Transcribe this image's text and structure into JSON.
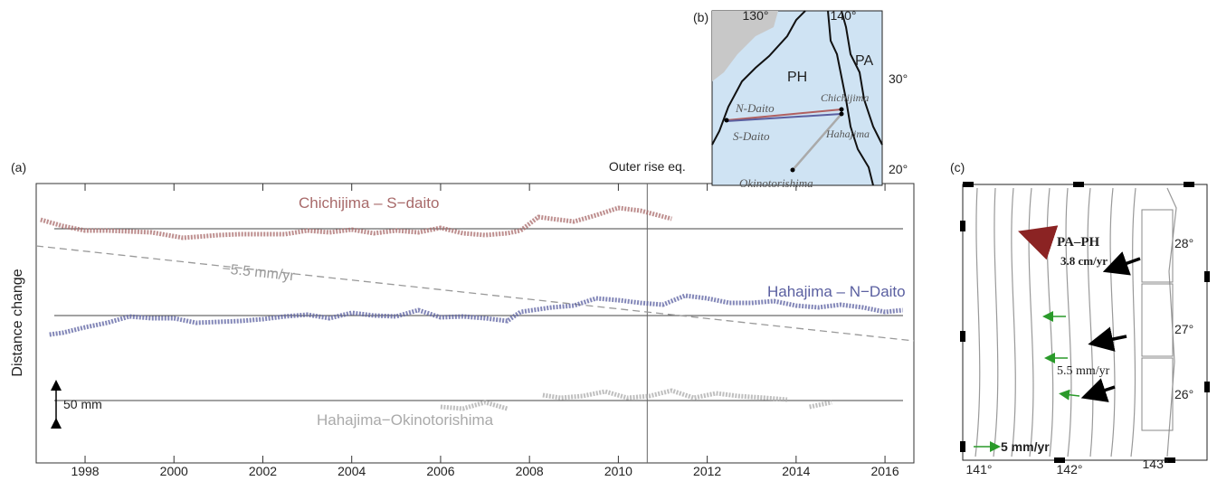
{
  "chart_data": {
    "type": "line",
    "panel_label": "(a)",
    "ylabel": "Distance change",
    "xlim": [
      1996.9,
      2016.65
    ],
    "xticks": [
      1998,
      2000,
      2002,
      2004,
      2006,
      2008,
      2010,
      2012,
      2014,
      2016
    ],
    "ylim": [
      -2,
      307
    ],
    "event": {
      "label": "Outer rise eq.",
      "x": 2010.65
    },
    "reference_lines": [
      257,
      161,
      67
    ],
    "trend": {
      "label": "−5.5 mm/yr",
      "x": [
        1996.9,
        2016.65
      ],
      "y": [
        238,
        133
      ],
      "color": "#999999"
    },
    "scale_bar": {
      "label": "50 mm",
      "value": 50
    },
    "series": [
      {
        "name": "Chichijima – S−daito",
        "color": "#a86a6a",
        "x": [
          1997.0,
          1997.5,
          1998,
          1998.5,
          1999,
          1999.5,
          2000.2,
          2000.5,
          2001,
          2001.5,
          2002,
          2002.5,
          2003,
          2003.5,
          2004,
          2004.5,
          2005,
          2005.5,
          2006,
          2006.5,
          2007,
          2007.5,
          2007.8,
          2008.2,
          2008.5,
          2009,
          2009.5,
          2010,
          2010.5,
          2011.2
        ],
        "values": [
          267,
          260,
          255,
          255,
          254,
          253,
          247,
          248,
          250,
          251,
          251,
          251,
          255,
          253,
          256,
          252,
          255,
          253,
          258,
          252,
          250,
          252,
          255,
          270,
          268,
          265,
          272,
          280,
          277,
          268
        ]
      },
      {
        "name": "Hahajima – N−Daito",
        "color": "#5a5fa0",
        "x": [
          1997.2,
          1997.5,
          1998,
          1998.5,
          1999,
          1999.5,
          2000,
          2000.5,
          2001,
          2001.5,
          2002,
          2002.5,
          2003,
          2003.5,
          2004,
          2004.5,
          2005,
          2005.5,
          2006,
          2006.5,
          2007,
          2007.5,
          2007.8,
          2008.5,
          2009,
          2009.5,
          2010,
          2010.5,
          2011,
          2011.5,
          2012,
          2012.5,
          2013,
          2013.5,
          2014,
          2014.5,
          2015,
          2015.5,
          2016,
          2016.4
        ],
        "values": [
          140,
          142,
          148,
          153,
          160,
          158,
          158,
          153,
          154,
          155,
          157,
          160,
          162,
          158,
          164,
          161,
          160,
          167,
          159,
          160,
          158,
          155,
          165,
          170,
          172,
          180,
          178,
          175,
          173,
          183,
          180,
          175,
          175,
          177,
          172,
          170,
          173,
          170,
          165,
          167
        ]
      },
      {
        "name": "Hahajima−Okinotorishima",
        "color": "#aaaaaa",
        "x": [
          2006.0,
          2006.5,
          2007.0,
          2007.5,
          2007.9,
          2008.3,
          2008.7,
          2009.2,
          2009.7,
          2010.2,
          2010.7,
          2011.2,
          2011.7,
          2012.2,
          2012.7,
          2013.3,
          2013.8,
          2014.0,
          2014.3,
          2014.8
        ],
        "values": [
          60,
          58,
          65,
          58,
          null,
          73,
          70,
          72,
          77,
          70,
          72,
          78,
          70,
          75,
          72,
          70,
          68,
          null,
          60,
          65
        ]
      }
    ]
  },
  "map_b": {
    "panel_label": "(b)",
    "lon_labels": [
      "130°",
      "140°"
    ],
    "lat_labels": [
      "30°",
      "20°"
    ],
    "plates": [
      "PH",
      "PA"
    ],
    "stations": [
      "N-Daito",
      "S-Daito",
      "Chichijima",
      "Hahajima",
      "Okinotorishima"
    ]
  },
  "map_c": {
    "panel_label": "(c)",
    "lat_labels": [
      "28°",
      "27°",
      "26°"
    ],
    "lon_labels": [
      "141°",
      "142°",
      "143°"
    ],
    "plate_motion": "PA–PH",
    "plate_rate": "3.8 cm/yr",
    "model_rate": "5.5 mm/yr",
    "scale_rate": "5 mm/yr"
  }
}
